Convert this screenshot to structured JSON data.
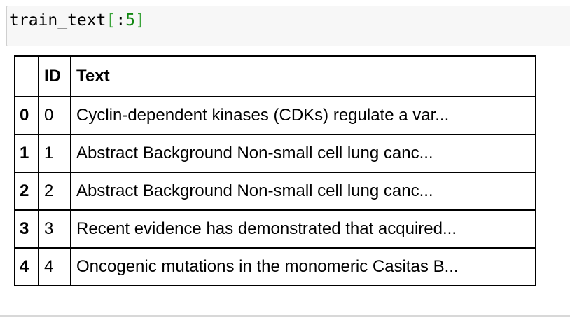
{
  "cell": {
    "code_var": "train_text",
    "code_open_bracket": "[",
    "code_slice_op": ":",
    "code_slice_num": "5",
    "code_close_bracket": "]"
  },
  "table": {
    "index_header": "",
    "columns": [
      "ID",
      "Text"
    ],
    "rows": [
      {
        "index": "0",
        "id": "0",
        "text": "Cyclin-dependent kinases (CDKs) regulate a var..."
      },
      {
        "index": "1",
        "id": "1",
        "text": "Abstract Background Non-small cell lung canc..."
      },
      {
        "index": "2",
        "id": "2",
        "text": "Abstract Background Non-small cell lung canc..."
      },
      {
        "index": "3",
        "id": "3",
        "text": "Recent evidence has demonstrated that acquired..."
      },
      {
        "index": "4",
        "id": "4",
        "text": "Oncogenic mutations in the monomeric Casitas B..."
      }
    ]
  }
}
